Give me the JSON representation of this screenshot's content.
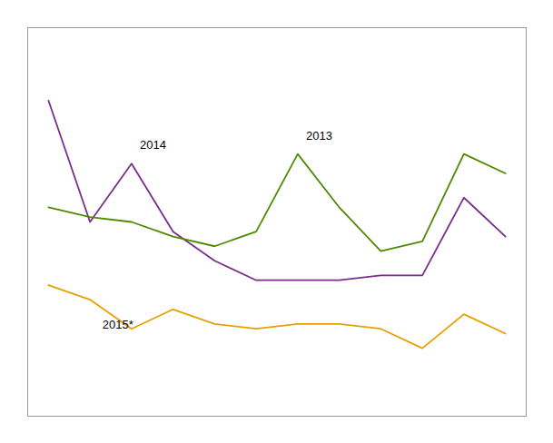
{
  "chart_data": {
    "type": "line",
    "x": [
      1,
      2,
      3,
      4,
      5,
      6,
      7,
      8,
      9,
      10,
      11,
      12
    ],
    "series": [
      {
        "name": "2014",
        "color": "#7b2d8b",
        "values": [
          85,
          60,
          72,
          58,
          52,
          48,
          48,
          48,
          49,
          49,
          65,
          57
        ]
      },
      {
        "name": "2013",
        "color": "#4d8a00",
        "values": [
          63,
          61,
          60,
          57,
          55,
          58,
          74,
          63,
          54,
          56,
          74,
          70
        ]
      },
      {
        "name": "2015*",
        "color": "#e8a000",
        "values": [
          47,
          44,
          38,
          42,
          39,
          38,
          39,
          39,
          38,
          34,
          41,
          37
        ]
      }
    ],
    "annotations": [
      {
        "text": "2014",
        "x": 3.2,
        "y": 75
      },
      {
        "text": "2013",
        "x": 7.2,
        "y": 77
      },
      {
        "text": "2015*",
        "x": 2.3,
        "y": 38
      }
    ],
    "xlim": [
      0.5,
      12.5
    ],
    "ylim": [
      20,
      100
    ],
    "grid": false,
    "tick_labels": false
  }
}
